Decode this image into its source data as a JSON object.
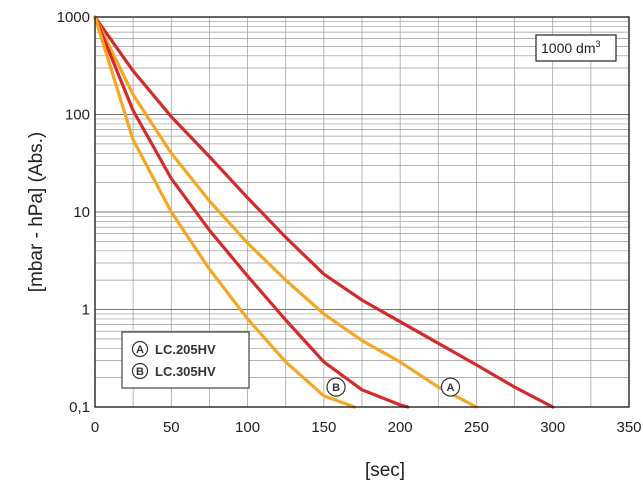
{
  "chart_data": {
    "type": "line",
    "x_scale": "linear",
    "y_scale": "log",
    "xlabel": "[sec]",
    "ylabel": "[mbar - hPa] (Abs.)",
    "xlim": [
      0,
      350
    ],
    "ylim": [
      0.1,
      1000
    ],
    "x_ticks": [
      "0",
      "50",
      "100",
      "150",
      "200",
      "250",
      "300",
      "350"
    ],
    "y_ticks": [
      "0,1",
      "1",
      "10",
      "100",
      "1000"
    ],
    "annotation": "1000 dm",
    "annotation_sup": "3",
    "grid": true,
    "legend": [
      {
        "marker": "A",
        "label": "LC.205HV"
      },
      {
        "marker": "B",
        "label": "LC.305HV"
      }
    ],
    "series": [
      {
        "color": "#d42a2a",
        "x": [
          0,
          25,
          50,
          75,
          100,
          125,
          150,
          175,
          200,
          225,
          250,
          275,
          300
        ],
        "y": [
          1000,
          280,
          95,
          37,
          14,
          5.5,
          2.3,
          1.25,
          0.75,
          0.45,
          0.27,
          0.16,
          0.1
        ]
      },
      {
        "color": "#f5a623",
        "x": [
          0,
          25,
          50,
          75,
          100,
          125,
          150,
          175,
          200,
          225,
          250
        ],
        "y": [
          1000,
          160,
          40,
          13,
          4.8,
          2.0,
          0.9,
          0.48,
          0.29,
          0.16,
          0.1
        ]
      },
      {
        "color": "#d42a2a",
        "x": [
          0,
          25,
          50,
          75,
          100,
          125,
          150,
          175,
          200,
          205
        ],
        "y": [
          1000,
          110,
          22,
          6.5,
          2.2,
          0.78,
          0.29,
          0.15,
          0.105,
          0.1
        ]
      },
      {
        "color": "#f5a623",
        "x": [
          0,
          25,
          50,
          75,
          100,
          125,
          150,
          170
        ],
        "y": [
          1000,
          55,
          10,
          2.6,
          0.8,
          0.29,
          0.13,
          0.1
        ]
      }
    ],
    "markers": [
      {
        "label": "A",
        "x": 233,
        "y": 0.16
      },
      {
        "label": "B",
        "x": 158,
        "y": 0.16
      }
    ]
  }
}
